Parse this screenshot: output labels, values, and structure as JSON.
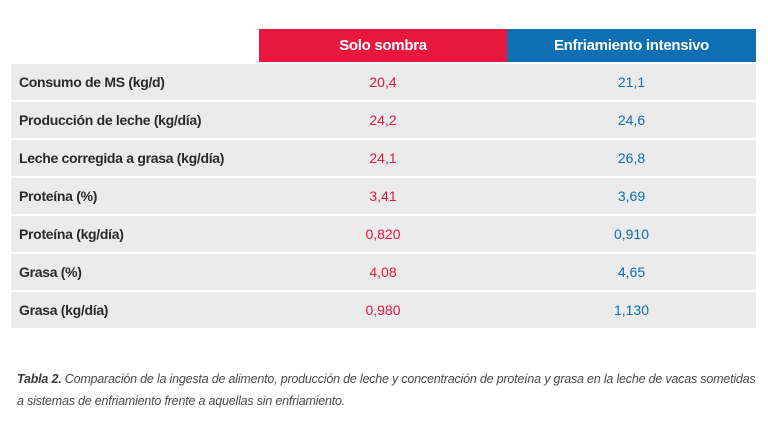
{
  "table": {
    "headers": [
      "",
      "Solo sombra",
      "Enfriamiento intensivo"
    ],
    "rows": [
      {
        "label": "Consumo de MS (kg/d)",
        "solo_sombra": "20,4",
        "enfriamiento": "21,1"
      },
      {
        "label": "Producción de leche (kg/día)",
        "solo_sombra": "24,2",
        "enfriamiento": "24,6"
      },
      {
        "label": "Leche corregida a grasa (kg/día)",
        "solo_sombra": "24,1",
        "enfriamiento": "26,8"
      },
      {
        "label": "Proteína (%)",
        "solo_sombra": "3,41",
        "enfriamiento": "3,69"
      },
      {
        "label": "Proteína (kg/día)",
        "solo_sombra": "0,820",
        "enfriamiento": "0,910"
      },
      {
        "label": "Grasa (%)",
        "solo_sombra": "4,08",
        "enfriamiento": "4,65"
      },
      {
        "label": "Grasa (kg/día)",
        "solo_sombra": "0,980",
        "enfriamiento": "1,130"
      }
    ]
  },
  "caption": {
    "label": "Tabla 2.",
    "text": " Comparación de la ingesta de alimento, producción de leche y concentración de proteína y grasa en la leche de vacas sometidas a sistemas de enfriamiento frente a aquellas sin enfriamiento."
  },
  "colors": {
    "solo_sombra": "#e8173f",
    "enfriamiento": "#0e6fb4",
    "row_background": "#ebebeb"
  }
}
